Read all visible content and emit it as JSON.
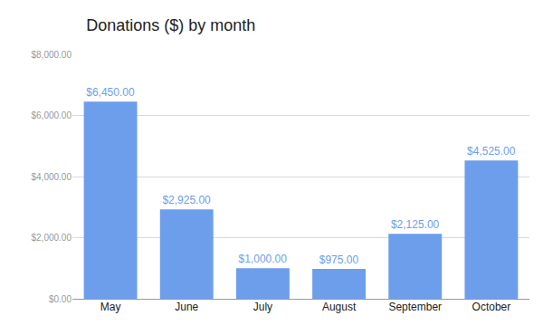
{
  "chart_data": {
    "type": "bar",
    "title": "Donations ($) by month",
    "categories": [
      "May",
      "June",
      "July",
      "August",
      "September",
      "October"
    ],
    "values": [
      6450,
      2925,
      1000,
      975,
      2125,
      4525
    ],
    "value_labels": [
      "$6,450.00",
      "$2,925.00",
      "$1,000.00",
      "$975.00",
      "$2,125.00",
      "$4,525.00"
    ],
    "color": "#6d9eeb",
    "data_labels": true,
    "ylim": [
      0,
      8000
    ],
    "yticks": [
      {
        "value": 0,
        "label": "$0.00"
      },
      {
        "value": 2000,
        "label": "$2,000.00"
      },
      {
        "value": 4000,
        "label": "$4,000.00"
      },
      {
        "value": 6000,
        "label": "$6,000.00"
      },
      {
        "value": 8000,
        "label": "$8,000.00"
      }
    ],
    "grid": true
  }
}
